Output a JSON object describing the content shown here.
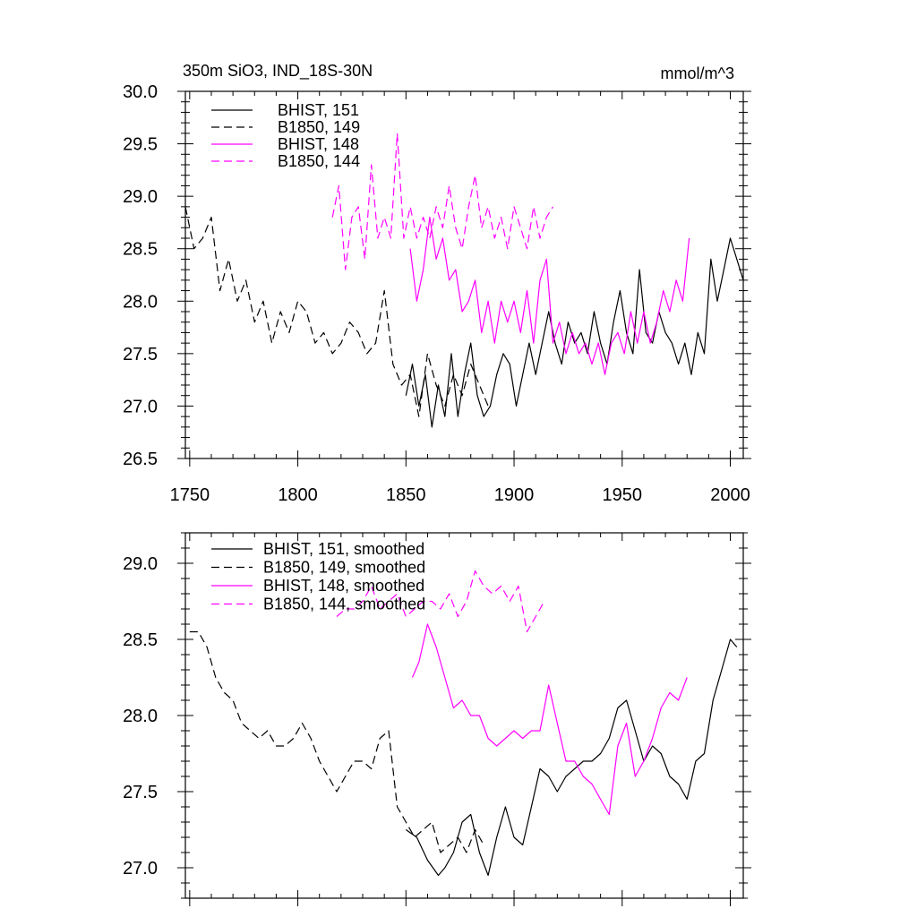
{
  "header": {
    "title_left": "350m SiO3, IND_18S-30N",
    "title_right": "mmol/m^3"
  },
  "colors": {
    "black": "#000000",
    "magenta": "#ff00ff"
  },
  "chart_data": [
    {
      "type": "line",
      "title": "350m SiO3, IND_18S-30N",
      "units": "mmol/m^3",
      "xlim": [
        1748,
        2006
      ],
      "ylim": [
        26.5,
        30.0
      ],
      "xticks": [
        1750,
        1800,
        1850,
        1900,
        1950,
        2000
      ],
      "yticks": [
        26.5,
        27.0,
        27.5,
        28.0,
        28.5,
        29.0,
        29.5,
        30.0
      ],
      "ytick_labels": [
        "26.5",
        "27.0",
        "27.5",
        "28.0",
        "28.5",
        "29.0",
        "29.5",
        "30.0"
      ],
      "xtick_labels": [
        "1750",
        "1800",
        "1850",
        "1900",
        "1950",
        "2000"
      ],
      "legend_position": "top-left",
      "series": [
        {
          "name": "BHIST, 151",
          "color": "#000000",
          "dash": "solid",
          "x": [
            1850,
            1853,
            1856,
            1859,
            1862,
            1865,
            1868,
            1871,
            1874,
            1877,
            1880,
            1883,
            1886,
            1889,
            1892,
            1895,
            1898,
            1901,
            1904,
            1907,
            1910,
            1913,
            1916,
            1919,
            1922,
            1925,
            1928,
            1931,
            1934,
            1937,
            1940,
            1943,
            1946,
            1949,
            1952,
            1955,
            1958,
            1961,
            1964,
            1967,
            1970,
            1973,
            1976,
            1979,
            1982,
            1985,
            1988,
            1991,
            1994,
            1997,
            2000,
            2003,
            2006
          ],
          "y": [
            27.1,
            27.4,
            27.0,
            27.3,
            26.8,
            27.2,
            26.9,
            27.5,
            26.9,
            27.3,
            27.6,
            27.1,
            26.9,
            27.0,
            27.3,
            27.5,
            27.4,
            27.0,
            27.3,
            27.6,
            27.3,
            27.6,
            27.9,
            27.6,
            27.4,
            27.8,
            27.6,
            27.7,
            27.5,
            27.9,
            27.6,
            27.4,
            27.8,
            28.1,
            27.7,
            27.5,
            28.3,
            27.7,
            27.6,
            27.9,
            27.7,
            27.6,
            27.4,
            27.6,
            27.3,
            27.7,
            27.5,
            28.4,
            28.0,
            28.3,
            28.6,
            28.4,
            28.2
          ]
        },
        {
          "name": "B1850, 149",
          "color": "#000000",
          "dash": "dashed",
          "x": [
            1748,
            1752,
            1756,
            1760,
            1764,
            1768,
            1772,
            1776,
            1780,
            1784,
            1788,
            1792,
            1796,
            1800,
            1804,
            1808,
            1812,
            1816,
            1820,
            1824,
            1828,
            1832,
            1836,
            1840,
            1844,
            1848,
            1852,
            1856,
            1860,
            1864,
            1868,
            1872,
            1876,
            1880,
            1884,
            1888
          ],
          "y": [
            28.9,
            28.5,
            28.6,
            28.8,
            28.1,
            28.4,
            28.0,
            28.2,
            27.8,
            28.0,
            27.6,
            27.9,
            27.7,
            28.0,
            27.9,
            27.6,
            27.7,
            27.5,
            27.6,
            27.8,
            27.7,
            27.5,
            27.6,
            28.1,
            27.4,
            27.2,
            27.3,
            26.9,
            27.5,
            27.2,
            27.0,
            27.3,
            27.1,
            27.4,
            27.2,
            27.0
          ]
        },
        {
          "name": "BHIST, 148",
          "color": "#ff00ff",
          "dash": "solid",
          "x": [
            1852,
            1855,
            1858,
            1861,
            1864,
            1867,
            1870,
            1873,
            1876,
            1879,
            1882,
            1885,
            1888,
            1891,
            1894,
            1897,
            1900,
            1903,
            1906,
            1909,
            1912,
            1915,
            1918,
            1921,
            1924,
            1927,
            1930,
            1933,
            1936,
            1939,
            1942,
            1945,
            1948,
            1951,
            1954,
            1957,
            1960,
            1963,
            1966,
            1969,
            1972,
            1975,
            1978,
            1981
          ],
          "y": [
            28.5,
            28.0,
            28.3,
            28.8,
            28.4,
            28.6,
            28.2,
            28.3,
            27.9,
            28.0,
            28.2,
            27.7,
            28.0,
            27.6,
            28.0,
            27.8,
            28.0,
            27.7,
            28.1,
            27.6,
            28.2,
            28.4,
            27.6,
            27.8,
            27.5,
            27.7,
            27.5,
            27.6,
            27.4,
            27.6,
            27.3,
            27.6,
            27.7,
            27.5,
            27.9,
            27.6,
            27.9,
            27.6,
            27.8,
            28.1,
            27.9,
            28.2,
            28.0,
            28.6
          ]
        },
        {
          "name": "B1850, 144",
          "color": "#ff00ff",
          "dash": "dashed",
          "x": [
            1816,
            1819,
            1822,
            1825,
            1828,
            1831,
            1834,
            1837,
            1840,
            1843,
            1846,
            1849,
            1852,
            1855,
            1858,
            1861,
            1864,
            1867,
            1870,
            1873,
            1876,
            1879,
            1882,
            1885,
            1888,
            1891,
            1894,
            1897,
            1900,
            1903,
            1906,
            1909,
            1912,
            1915,
            1918
          ],
          "y": [
            28.8,
            29.1,
            28.3,
            28.8,
            28.9,
            28.4,
            29.3,
            28.6,
            28.8,
            28.6,
            29.6,
            28.6,
            28.9,
            28.6,
            28.8,
            28.6,
            28.9,
            28.7,
            29.1,
            28.7,
            28.5,
            28.9,
            29.2,
            28.7,
            28.9,
            28.6,
            28.8,
            28.5,
            28.9,
            28.7,
            28.5,
            28.9,
            28.6,
            28.8,
            28.9
          ]
        }
      ]
    },
    {
      "type": "line",
      "xlim": [
        1748,
        2006
      ],
      "ylim": [
        26.8,
        29.2
      ],
      "xticks": [
        1750,
        1800,
        1850,
        1900,
        1950,
        2000
      ],
      "yticks": [
        27.0,
        27.5,
        28.0,
        28.5,
        29.0
      ],
      "ytick_labels": [
        "27.0",
        "27.5",
        "28.0",
        "28.5",
        "29.0"
      ],
      "legend_position": "top-left",
      "series": [
        {
          "name": "BHIST, 151, smoothed",
          "color": "#000000",
          "dash": "solid",
          "x": [
            1850,
            1855,
            1860,
            1865,
            1868,
            1872,
            1876,
            1880,
            1884,
            1888,
            1892,
            1896,
            1900,
            1904,
            1908,
            1912,
            1916,
            1920,
            1924,
            1928,
            1932,
            1936,
            1940,
            1944,
            1948,
            1952,
            1956,
            1960,
            1964,
            1968,
            1972,
            1976,
            1980,
            1984,
            1988,
            1992,
            1996,
            2000,
            2003
          ],
          "y": [
            27.25,
            27.2,
            27.05,
            26.95,
            27.0,
            27.1,
            27.3,
            27.35,
            27.1,
            26.95,
            27.2,
            27.4,
            27.2,
            27.15,
            27.4,
            27.65,
            27.6,
            27.5,
            27.6,
            27.65,
            27.7,
            27.7,
            27.75,
            27.85,
            28.05,
            28.1,
            27.9,
            27.7,
            27.8,
            27.75,
            27.6,
            27.55,
            27.45,
            27.7,
            27.75,
            28.1,
            28.3,
            28.5,
            28.45
          ]
        },
        {
          "name": "B1850, 149, smoothed",
          "color": "#000000",
          "dash": "dashed",
          "x": [
            1750,
            1754,
            1758,
            1762,
            1766,
            1770,
            1774,
            1778,
            1782,
            1786,
            1790,
            1794,
            1798,
            1802,
            1806,
            1810,
            1814,
            1818,
            1822,
            1826,
            1830,
            1834,
            1838,
            1842,
            1846,
            1850,
            1854,
            1858,
            1862,
            1866,
            1870,
            1874,
            1878,
            1882,
            1886
          ],
          "y": [
            28.55,
            28.55,
            28.45,
            28.25,
            28.15,
            28.1,
            27.95,
            27.9,
            27.85,
            27.9,
            27.8,
            27.8,
            27.85,
            27.95,
            27.85,
            27.7,
            27.6,
            27.5,
            27.6,
            27.7,
            27.7,
            27.65,
            27.85,
            27.9,
            27.4,
            27.3,
            27.2,
            27.25,
            27.3,
            27.1,
            27.15,
            27.2,
            27.1,
            27.25,
            27.15
          ]
        },
        {
          "name": "BHIST, 148, smoothed",
          "color": "#ff00ff",
          "dash": "solid",
          "x": [
            1853,
            1856,
            1860,
            1864,
            1868,
            1872,
            1876,
            1880,
            1884,
            1888,
            1892,
            1896,
            1900,
            1904,
            1908,
            1912,
            1916,
            1920,
            1924,
            1928,
            1932,
            1936,
            1940,
            1944,
            1948,
            1952,
            1956,
            1960,
            1964,
            1968,
            1972,
            1976,
            1980
          ],
          "y": [
            28.25,
            28.35,
            28.6,
            28.45,
            28.25,
            28.05,
            28.1,
            28.0,
            28.0,
            27.85,
            27.8,
            27.85,
            27.9,
            27.85,
            27.9,
            27.9,
            28.2,
            27.95,
            27.7,
            27.7,
            27.6,
            27.55,
            27.45,
            27.35,
            27.8,
            27.95,
            27.6,
            27.7,
            27.85,
            28.05,
            28.15,
            28.1,
            28.25
          ]
        },
        {
          "name": "B1850, 144, smoothed",
          "color": "#ff00ff",
          "dash": "dashed",
          "x": [
            1818,
            1822,
            1826,
            1830,
            1834,
            1838,
            1842,
            1846,
            1850,
            1854,
            1858,
            1862,
            1866,
            1870,
            1874,
            1878,
            1882,
            1886,
            1890,
            1894,
            1898,
            1902,
            1906,
            1910,
            1914
          ],
          "y": [
            28.65,
            28.7,
            28.7,
            28.75,
            28.85,
            28.7,
            28.75,
            28.8,
            28.65,
            28.7,
            28.75,
            28.75,
            28.7,
            28.8,
            28.65,
            28.75,
            28.95,
            28.85,
            28.8,
            28.85,
            28.75,
            28.85,
            28.55,
            28.65,
            28.75
          ]
        }
      ]
    }
  ]
}
